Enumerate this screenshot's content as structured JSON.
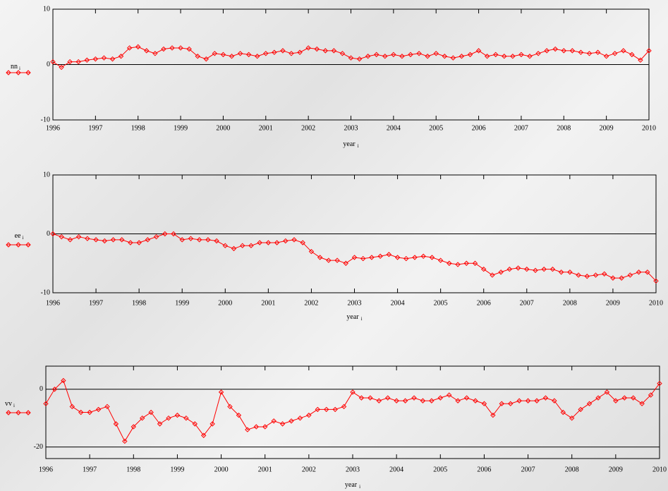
{
  "chart_data": [
    {
      "type": "line",
      "ylabel": "nn",
      "ylabel_sub": "i",
      "xlabel": "year",
      "xlabel_sub": "i",
      "color": "#ff0000",
      "xlim": [
        1996,
        2010
      ],
      "xticks": [
        1996,
        1997,
        1998,
        1999,
        2000,
        2001,
        2002,
        2003,
        2004,
        2005,
        2006,
        2007,
        2008,
        2009,
        2010
      ],
      "ylim": [
        -10,
        10
      ],
      "yticks": [
        -10,
        0,
        10
      ],
      "x": [
        1996,
        1996.2,
        1996.4,
        1996.6,
        1996.8,
        1997,
        1997.2,
        1997.4,
        1997.6,
        1997.8,
        1998,
        1998.2,
        1998.4,
        1998.6,
        1998.8,
        1999,
        1999.2,
        1999.4,
        1999.6,
        1999.8,
        2000,
        2000.2,
        2000.4,
        2000.6,
        2000.8,
        2001,
        2001.2,
        2001.4,
        2001.6,
        2001.8,
        2002,
        2002.2,
        2002.4,
        2002.6,
        2002.8,
        2003,
        2003.2,
        2003.4,
        2003.6,
        2003.8,
        2004,
        2004.2,
        2004.4,
        2004.6,
        2004.8,
        2005,
        2005.2,
        2005.4,
        2005.6,
        2005.8,
        2006,
        2006.2,
        2006.4,
        2006.6,
        2006.8,
        2007,
        2007.2,
        2007.4,
        2007.6,
        2007.8,
        2008,
        2008.2,
        2008.4,
        2008.6,
        2008.8,
        2009,
        2009.2,
        2009.4,
        2009.6,
        2009.8,
        2010
      ],
      "values": [
        0.5,
        -0.5,
        0.5,
        0.5,
        0.8,
        1.0,
        1.2,
        1.0,
        1.5,
        3.0,
        3.2,
        2.5,
        2.0,
        2.8,
        3.0,
        3.0,
        2.8,
        1.5,
        1.0,
        2.0,
        1.8,
        1.5,
        2.0,
        1.8,
        1.5,
        2.0,
        2.2,
        2.5,
        2.0,
        2.2,
        3.0,
        2.8,
        2.5,
        2.5,
        2.0,
        1.2,
        1.0,
        1.5,
        1.8,
        1.5,
        1.8,
        1.5,
        1.8,
        2.0,
        1.5,
        2.0,
        1.5,
        1.2,
        1.5,
        1.8,
        2.5,
        1.5,
        1.8,
        1.5,
        1.5,
        1.8,
        1.5,
        2.0,
        2.5,
        2.8,
        2.5,
        2.5,
        2.2,
        2.0,
        2.2,
        1.5,
        2.0,
        2.5,
        1.8,
        0.8,
        2.5
      ]
    },
    {
      "type": "line",
      "ylabel": "ee",
      "ylabel_sub": "i",
      "xlabel": "year",
      "xlabel_sub": "i",
      "color": "#ff0000",
      "xlim": [
        1996,
        2010
      ],
      "xticks": [
        1996,
        1997,
        1998,
        1999,
        2000,
        2001,
        2002,
        2003,
        2004,
        2005,
        2006,
        2007,
        2008,
        2009,
        2010
      ],
      "ylim": [
        -10,
        10
      ],
      "yticks": [
        -10,
        0,
        10
      ],
      "x": [
        1996,
        1996.2,
        1996.4,
        1996.6,
        1996.8,
        1997,
        1997.2,
        1997.4,
        1997.6,
        1997.8,
        1998,
        1998.2,
        1998.4,
        1998.6,
        1998.8,
        1999,
        1999.2,
        1999.4,
        1999.6,
        1999.8,
        2000,
        2000.2,
        2000.4,
        2000.6,
        2000.8,
        2001,
        2001.2,
        2001.4,
        2001.6,
        2001.8,
        2002,
        2002.2,
        2002.4,
        2002.6,
        2002.8,
        2003,
        2003.2,
        2003.4,
        2003.6,
        2003.8,
        2004,
        2004.2,
        2004.4,
        2004.6,
        2004.8,
        2005,
        2005.2,
        2005.4,
        2005.6,
        2005.8,
        2006,
        2006.2,
        2006.4,
        2006.6,
        2006.8,
        2007,
        2007.2,
        2007.4,
        2007.6,
        2007.8,
        2008,
        2008.2,
        2008.4,
        2008.6,
        2008.8,
        2009,
        2009.2,
        2009.4,
        2009.6,
        2009.8,
        2010
      ],
      "values": [
        0,
        -0.5,
        -1.0,
        -0.5,
        -0.8,
        -1.0,
        -1.2,
        -1.0,
        -1.0,
        -1.5,
        -1.5,
        -1.0,
        -0.5,
        0.0,
        0.0,
        -1.0,
        -0.8,
        -1.0,
        -1.0,
        -1.2,
        -2.0,
        -2.5,
        -2.0,
        -2.0,
        -1.5,
        -1.5,
        -1.5,
        -1.2,
        -1.0,
        -1.5,
        -3.0,
        -4.0,
        -4.5,
        -4.5,
        -5.0,
        -4.0,
        -4.2,
        -4.0,
        -3.8,
        -3.5,
        -4.0,
        -4.2,
        -4.0,
        -3.8,
        -4.0,
        -4.5,
        -5.0,
        -5.2,
        -5.0,
        -5.0,
        -6.0,
        -7.0,
        -6.5,
        -6.0,
        -5.8,
        -6.0,
        -6.2,
        -6.0,
        -6.0,
        -6.5,
        -6.5,
        -7.0,
        -7.2,
        -7.0,
        -6.8,
        -7.5,
        -7.5,
        -7.0,
        -6.5,
        -6.5,
        -8.0
      ]
    },
    {
      "type": "line",
      "ylabel": "vv",
      "ylabel_sub": "i",
      "xlabel": "year",
      "xlabel_sub": "i",
      "color": "#ff0000",
      "xlim": [
        1996,
        2010
      ],
      "xticks": [
        1996,
        1997,
        1998,
        1999,
        2000,
        2001,
        2002,
        2003,
        2004,
        2005,
        2006,
        2007,
        2008,
        2009,
        2010
      ],
      "ylim": [
        -24,
        8
      ],
      "yticks": [
        -20,
        0
      ],
      "x": [
        1996,
        1996.2,
        1996.4,
        1996.6,
        1996.8,
        1997,
        1997.2,
        1997.4,
        1997.6,
        1997.8,
        1998,
        1998.2,
        1998.4,
        1998.6,
        1998.8,
        1999,
        1999.2,
        1999.4,
        1999.6,
        1999.8,
        2000,
        2000.2,
        2000.4,
        2000.6,
        2000.8,
        2001,
        2001.2,
        2001.4,
        2001.6,
        2001.8,
        2002,
        2002.2,
        2002.4,
        2002.6,
        2002.8,
        2003,
        2003.2,
        2003.4,
        2003.6,
        2003.8,
        2004,
        2004.2,
        2004.4,
        2004.6,
        2004.8,
        2005,
        2005.2,
        2005.4,
        2005.6,
        2005.8,
        2006,
        2006.2,
        2006.4,
        2006.6,
        2006.8,
        2007,
        2007.2,
        2007.4,
        2007.6,
        2007.8,
        2008,
        2008.2,
        2008.4,
        2008.6,
        2008.8,
        2009,
        2009.2,
        2009.4,
        2009.6,
        2009.8,
        2010
      ],
      "values": [
        -5,
        0,
        3,
        -6,
        -8,
        -8,
        -7,
        -6,
        -12,
        -18,
        -13,
        -10,
        -8,
        -12,
        -10,
        -9,
        -10,
        -12,
        -16,
        -12,
        -1,
        -6,
        -9,
        -14,
        -13,
        -13,
        -11,
        -12,
        -11,
        -10,
        -9,
        -7,
        -7,
        -7,
        -6,
        -1,
        -3,
        -3,
        -4,
        -3,
        -4,
        -4,
        -3,
        -4,
        -4,
        -3,
        -2,
        -4,
        -3,
        -4,
        -5,
        -9,
        -5,
        -5,
        -4,
        -4,
        -4,
        -3,
        -4,
        -8,
        -10,
        -7,
        -5,
        -3,
        -1,
        -4,
        -3,
        -3,
        -5,
        -2,
        2
      ]
    }
  ]
}
